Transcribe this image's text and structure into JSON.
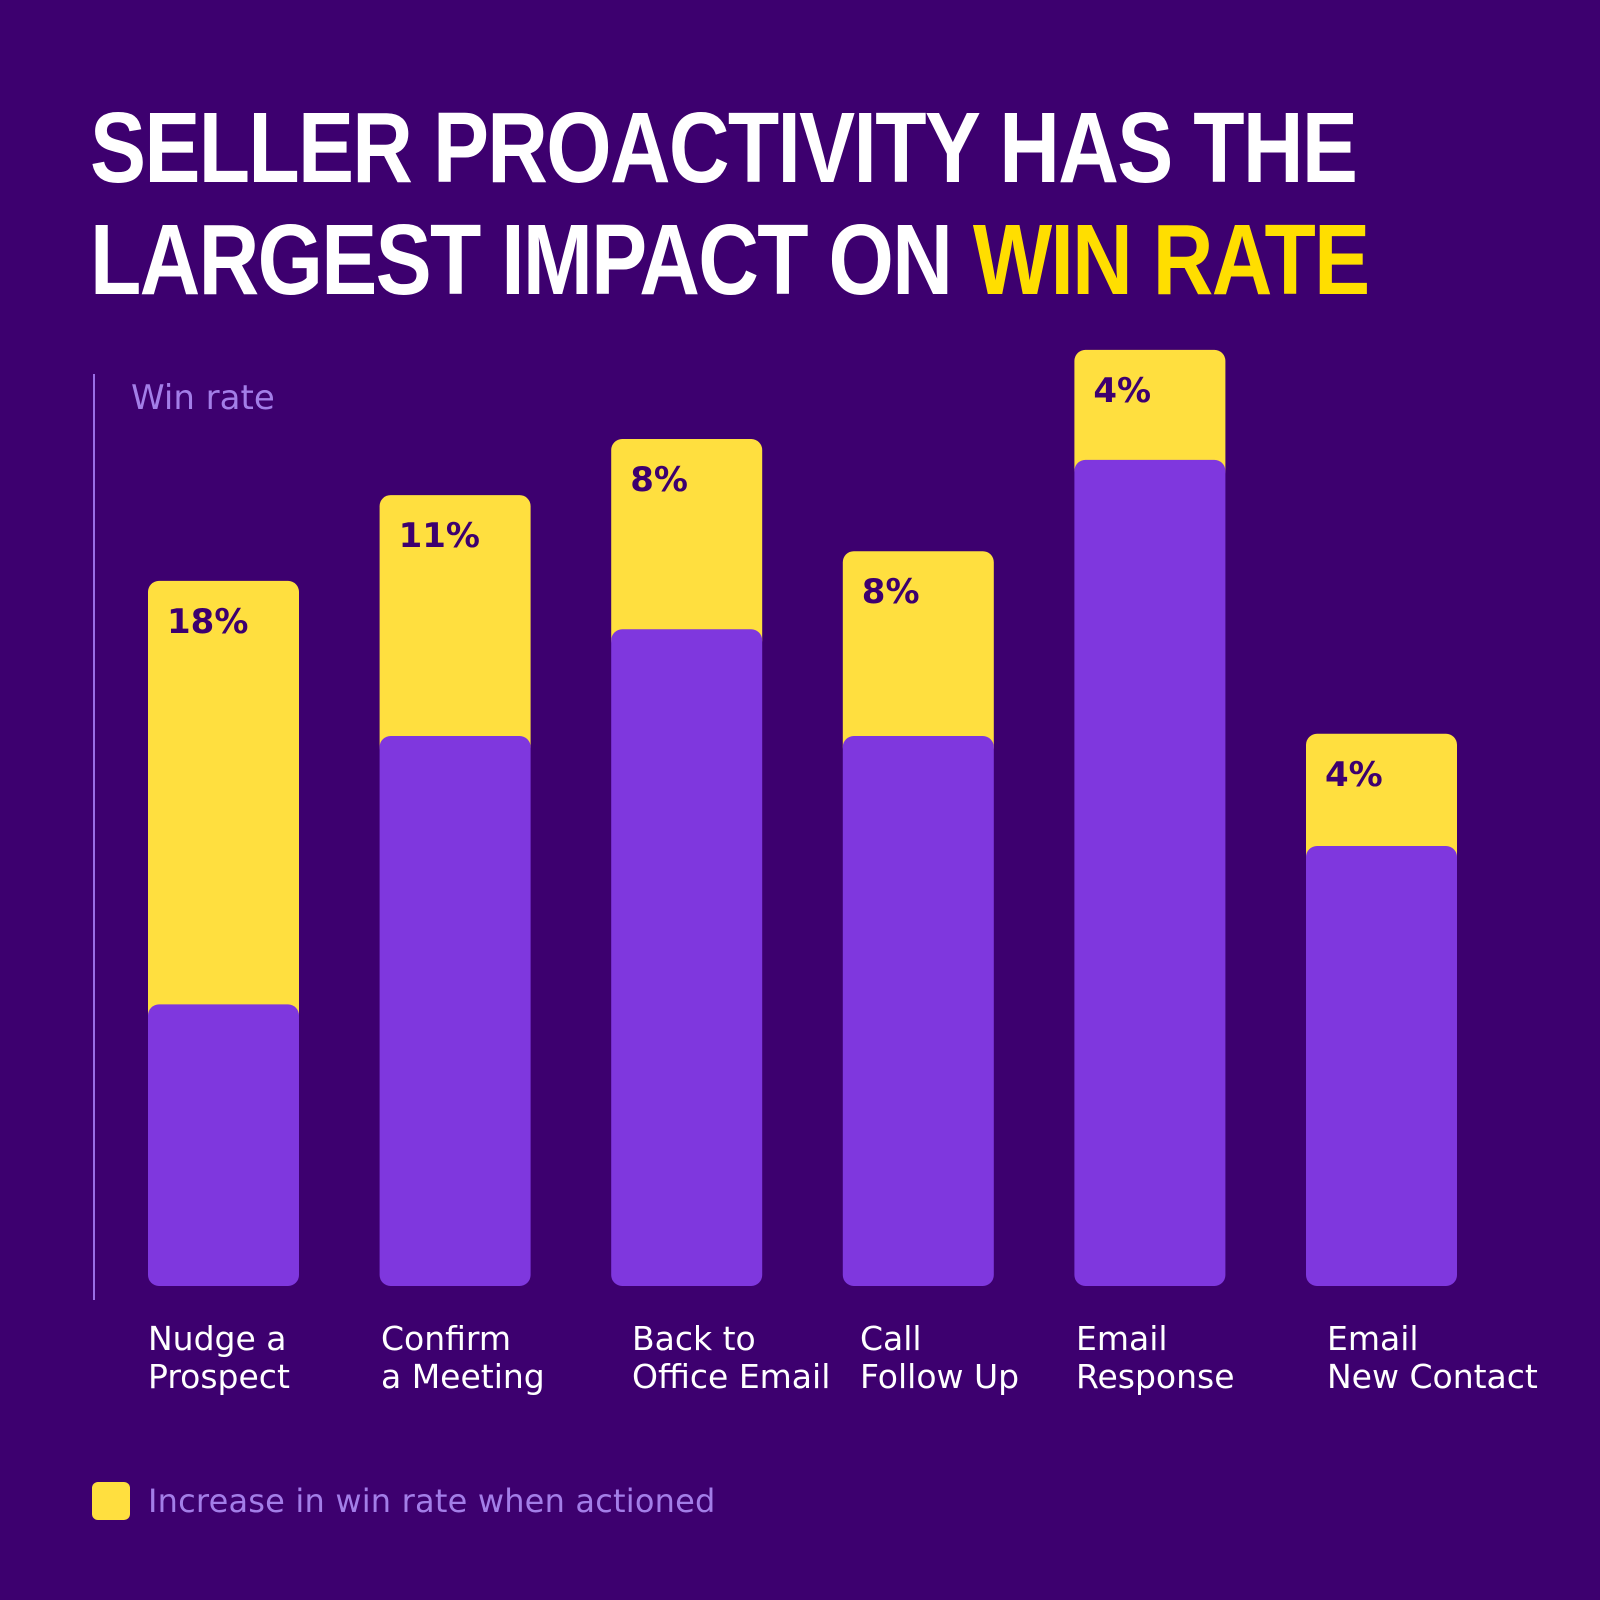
{
  "title": {
    "line1": "SELLER PROACTIVITY HAS THE",
    "line2_white": "LARGEST IMPACT ON ",
    "line2_highlight": "WIN RATE"
  },
  "colors": {
    "background": "#3d006f",
    "base_bar": "#7f37de",
    "increase_bar": "#ffdf3f",
    "value_label": "#3d006f",
    "axis_label": "#a37ee8",
    "category_label": "#ffffff",
    "highlight": "#ffde00"
  },
  "chart_data": {
    "type": "bar",
    "stacked": true,
    "ylabel": "Win rate",
    "categories": [
      [
        "Nudge a",
        "Prospect"
      ],
      [
        "Confirm",
        "a Meeting"
      ],
      [
        "Back to",
        "Office Email"
      ],
      [
        "Call",
        "Follow Up"
      ],
      [
        "Email",
        "Response"
      ],
      [
        "Email",
        "New Contact"
      ]
    ],
    "base_values": [
      25.6,
      50,
      59.7,
      50,
      75.1,
      40
    ],
    "increase_values": [
      38.5,
      21.9,
      17.3,
      16.8,
      10,
      10.2
    ],
    "increase_labels": [
      "18%",
      "11%",
      "8%",
      "8%",
      "4%",
      "4%"
    ],
    "ylim": [
      0,
      85
    ],
    "grid": false,
    "legend": {
      "position": "bottom-left",
      "label": "Increase in win rate when actioned"
    }
  }
}
